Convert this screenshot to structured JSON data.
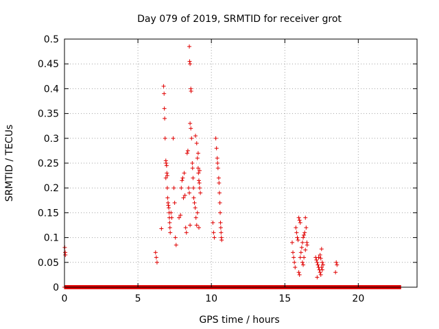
{
  "chart_data": {
    "type": "scatter",
    "title": "Day 079 of 2019, SRMTID for receiver grot",
    "xlabel": "GPS time / hours",
    "ylabel": "SRMTID / TECUs",
    "xlim": [
      0,
      24
    ],
    "ylim": [
      0,
      0.5
    ],
    "xticks": [
      "0",
      "5",
      "10",
      "15",
      "20"
    ],
    "xtick_values": [
      0,
      5,
      10,
      15,
      20
    ],
    "yticks": [
      "0",
      "0.05",
      "0.1",
      "0.15",
      "0.2",
      "0.25",
      "0.3",
      "0.35",
      "0.4",
      "0.45",
      "0.5"
    ],
    "ytick_values": [
      0,
      0.05,
      0.1,
      0.15,
      0.2,
      0.25,
      0.3,
      0.35,
      0.4,
      0.45,
      0.5
    ],
    "grid": true,
    "marker": "+",
    "color": "#e00000",
    "zero_baseline": {
      "x_start": 0,
      "x_end": 22.9,
      "y": 0
    },
    "points": [
      [
        0.02,
        0.08
      ],
      [
        0.05,
        0.07
      ],
      [
        0.06,
        0.065
      ],
      [
        6.2,
        0.07
      ],
      [
        6.25,
        0.06
      ],
      [
        6.3,
        0.05
      ],
      [
        6.6,
        0.118
      ],
      [
        6.75,
        0.405
      ],
      [
        6.78,
        0.39
      ],
      [
        6.8,
        0.36
      ],
      [
        6.82,
        0.34
      ],
      [
        6.85,
        0.3
      ],
      [
        6.9,
        0.255
      ],
      [
        6.92,
        0.25
      ],
      [
        6.95,
        0.245
      ],
      [
        6.97,
        0.23
      ],
      [
        7.0,
        0.225
      ],
      [
        6.9,
        0.22
      ],
      [
        7.0,
        0.2
      ],
      [
        7.02,
        0.18
      ],
      [
        7.05,
        0.17
      ],
      [
        7.07,
        0.165
      ],
      [
        7.1,
        0.16
      ],
      [
        7.12,
        0.15
      ],
      [
        7.14,
        0.14
      ],
      [
        7.16,
        0.13
      ],
      [
        7.18,
        0.12
      ],
      [
        7.2,
        0.11
      ],
      [
        7.25,
        0.15
      ],
      [
        7.3,
        0.14
      ],
      [
        7.4,
        0.3
      ],
      [
        7.45,
        0.2
      ],
      [
        7.5,
        0.17
      ],
      [
        7.55,
        0.1
      ],
      [
        7.6,
        0.085
      ],
      [
        7.8,
        0.14
      ],
      [
        7.9,
        0.145
      ],
      [
        7.95,
        0.2
      ],
      [
        8.0,
        0.215
      ],
      [
        8.05,
        0.22
      ],
      [
        8.1,
        0.18
      ],
      [
        8.15,
        0.23
      ],
      [
        8.2,
        0.185
      ],
      [
        8.25,
        0.12
      ],
      [
        8.3,
        0.11
      ],
      [
        8.35,
        0.27
      ],
      [
        8.4,
        0.275
      ],
      [
        8.45,
        0.2
      ],
      [
        8.5,
        0.19
      ],
      [
        8.55,
        0.125
      ],
      [
        8.5,
        0.485
      ],
      [
        8.52,
        0.455
      ],
      [
        8.55,
        0.45
      ],
      [
        8.6,
        0.4
      ],
      [
        8.62,
        0.395
      ],
      [
        8.55,
        0.33
      ],
      [
        8.6,
        0.32
      ],
      [
        8.65,
        0.3
      ],
      [
        8.7,
        0.25
      ],
      [
        8.72,
        0.24
      ],
      [
        8.75,
        0.22
      ],
      [
        8.78,
        0.2
      ],
      [
        8.8,
        0.18
      ],
      [
        8.85,
        0.17
      ],
      [
        8.9,
        0.16
      ],
      [
        8.95,
        0.14
      ],
      [
        9.0,
        0.125
      ],
      [
        8.92,
        0.305
      ],
      [
        9.0,
        0.29
      ],
      [
        9.05,
        0.26
      ],
      [
        9.1,
        0.24
      ],
      [
        9.12,
        0.23
      ],
      [
        9.15,
        0.215
      ],
      [
        9.18,
        0.21
      ],
      [
        9.2,
        0.2
      ],
      [
        9.25,
        0.19
      ],
      [
        9.1,
        0.27
      ],
      [
        9.05,
        0.15
      ],
      [
        9.15,
        0.12
      ],
      [
        9.2,
        0.235
      ],
      [
        10.1,
        0.13
      ],
      [
        10.15,
        0.11
      ],
      [
        10.2,
        0.1
      ],
      [
        10.3,
        0.3
      ],
      [
        10.35,
        0.28
      ],
      [
        10.4,
        0.26
      ],
      [
        10.42,
        0.25
      ],
      [
        10.45,
        0.24
      ],
      [
        10.5,
        0.22
      ],
      [
        10.52,
        0.21
      ],
      [
        10.55,
        0.19
      ],
      [
        10.58,
        0.17
      ],
      [
        10.6,
        0.15
      ],
      [
        10.62,
        0.13
      ],
      [
        10.64,
        0.12
      ],
      [
        10.66,
        0.11
      ],
      [
        10.68,
        0.1
      ],
      [
        10.7,
        0.095
      ],
      [
        15.5,
        0.09
      ],
      [
        15.55,
        0.07
      ],
      [
        15.6,
        0.06
      ],
      [
        15.65,
        0.05
      ],
      [
        15.7,
        0.04
      ],
      [
        15.75,
        0.12
      ],
      [
        15.8,
        0.11
      ],
      [
        15.85,
        0.1
      ],
      [
        15.9,
        0.095
      ],
      [
        15.95,
        0.14
      ],
      [
        16.0,
        0.135
      ],
      [
        16.05,
        0.13
      ],
      [
        15.95,
        0.03
      ],
      [
        16.0,
        0.025
      ],
      [
        16.05,
        0.06
      ],
      [
        16.1,
        0.07
      ],
      [
        16.15,
        0.08
      ],
      [
        16.2,
        0.09
      ],
      [
        16.25,
        0.1
      ],
      [
        16.3,
        0.105
      ],
      [
        16.35,
        0.11
      ],
      [
        16.4,
        0.14
      ],
      [
        16.45,
        0.12
      ],
      [
        16.5,
        0.09
      ],
      [
        16.52,
        0.085
      ],
      [
        16.2,
        0.05
      ],
      [
        16.25,
        0.045
      ],
      [
        16.3,
        0.06
      ],
      [
        16.4,
        0.075
      ],
      [
        17.1,
        0.06
      ],
      [
        17.15,
        0.055
      ],
      [
        17.2,
        0.05
      ],
      [
        17.25,
        0.045
      ],
      [
        17.3,
        0.04
      ],
      [
        17.35,
        0.035
      ],
      [
        17.4,
        0.03
      ],
      [
        17.45,
        0.025
      ],
      [
        17.2,
        0.02
      ],
      [
        17.3,
        0.06
      ],
      [
        17.4,
        0.065
      ],
      [
        17.45,
        0.058
      ],
      [
        17.5,
        0.077
      ],
      [
        17.55,
        0.05
      ],
      [
        17.6,
        0.045
      ],
      [
        17.5,
        0.04
      ],
      [
        17.55,
        0.035
      ],
      [
        18.5,
        0.05
      ],
      [
        18.55,
        0.045
      ],
      [
        18.45,
        0.03
      ]
    ]
  }
}
